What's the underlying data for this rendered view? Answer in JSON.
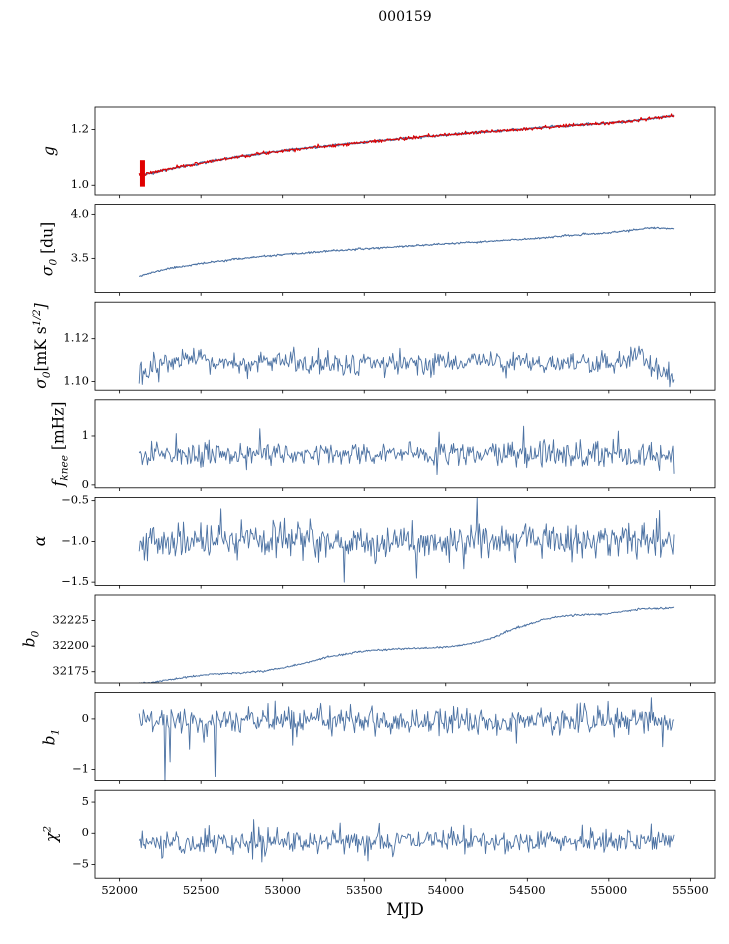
{
  "chart_data": {
    "type": "line",
    "title": "000159",
    "xlabel": "MJD",
    "line_color": "#4c72a3",
    "overlay_color": "#e00000",
    "frame_color": "#000000",
    "x_axis": {
      "range": [
        51849,
        55651
      ],
      "ticks": [
        52000,
        52500,
        53000,
        53500,
        54000,
        54500,
        55000,
        55500
      ],
      "tick_labels": [
        "52000",
        "52500",
        "53000",
        "53500",
        "54000",
        "54500",
        "55000",
        "55500"
      ]
    },
    "x_data_range": [
      52120,
      55400
    ],
    "panels": [
      {
        "id": "g",
        "ylabel": "g",
        "kind": "smooth",
        "seed": 3,
        "noise": 0.0018,
        "lw": 1.6,
        "ylim": [
          0.965,
          1.281
        ],
        "yticks": [
          1.0,
          1.2
        ],
        "ytick_labels": [
          "1.0",
          "1.2"
        ],
        "anchors_x": [
          52120,
          52300,
          52500,
          52700,
          52900,
          53100,
          53300,
          53600,
          53900,
          54200,
          54500,
          54800,
          55100,
          55400
        ],
        "anchors_y": [
          1.035,
          1.058,
          1.08,
          1.1,
          1.117,
          1.131,
          1.143,
          1.16,
          1.176,
          1.19,
          1.203,
          1.216,
          1.228,
          1.25
        ],
        "overlay": {
          "seed": 7,
          "noise": 0.003,
          "lw": 1.1,
          "errorbar": {
            "x": 52140,
            "y0": 0.995,
            "y1": 1.09,
            "width": 5
          }
        }
      },
      {
        "id": "sigma0-du",
        "ylabel": "σ_{0} [du]",
        "kind": "smooth",
        "seed": 11,
        "noise": 0.005,
        "lw": 1.1,
        "ylim": [
          3.111,
          4.111
        ],
        "yticks": [
          3.5,
          4.0
        ],
        "ytick_labels": [
          "3.5",
          "4.0"
        ],
        "anchors_x": [
          52120,
          52300,
          52500,
          52700,
          52900,
          53100,
          53300,
          53600,
          53900,
          54200,
          54500,
          54800,
          55000,
          55250,
          55400
        ],
        "anchors_y": [
          3.3,
          3.385,
          3.44,
          3.49,
          3.525,
          3.555,
          3.585,
          3.62,
          3.655,
          3.685,
          3.72,
          3.765,
          3.79,
          3.845,
          3.84
        ]
      },
      {
        "id": "sigma0-mk",
        "ylabel": "σ_{0}[mK s^{1/2}]",
        "kind": "noisy",
        "seed": 13,
        "noise": 0.0028,
        "lw": 0.9,
        "ylim": [
          1.096,
          1.137
        ],
        "yticks": [
          1.1,
          1.12
        ],
        "ytick_labels": [
          "1.10",
          "1.12"
        ],
        "anchors_x": [
          52120,
          52200,
          52400,
          52700,
          53000,
          53400,
          53800,
          54200,
          54600,
          55000,
          55200,
          55330,
          55400
        ],
        "anchors_y": [
          1.101,
          1.107,
          1.11,
          1.108,
          1.109,
          1.108,
          1.108,
          1.11,
          1.108,
          1.108,
          1.111,
          1.104,
          1.102
        ],
        "spikes": []
      },
      {
        "id": "fknee",
        "ylabel": "f_{knee} [mHz]",
        "kind": "noisy",
        "seed": 17,
        "noise": 0.13,
        "lw": 0.9,
        "ylim": [
          -0.06,
          1.74
        ],
        "yticks": [
          0,
          1
        ],
        "ytick_labels": [
          "0",
          "1"
        ],
        "anchors_x": [
          52120,
          53000,
          54000,
          55000,
          55400
        ],
        "anchors_y": [
          0.61,
          0.63,
          0.62,
          0.63,
          0.61
        ],
        "spikes": [
          {
            "x": 52350,
            "y": 1.05
          },
          {
            "x": 52860,
            "y": 1.15
          },
          {
            "x": 53960,
            "y": 1.08
          },
          {
            "x": 54480,
            "y": 1.2
          },
          {
            "x": 55060,
            "y": 1.1
          }
        ]
      },
      {
        "id": "alpha",
        "ylabel": "α",
        "kind": "noisy",
        "seed": 19,
        "noise": 0.11,
        "lw": 0.9,
        "ylim": [
          -1.54,
          -0.46
        ],
        "yticks": [
          -1.5,
          -1.0,
          -0.5
        ],
        "ytick_labels": [
          "−1.5",
          "−1.0",
          "−0.5"
        ],
        "anchors_x": [
          52120,
          55400
        ],
        "anchors_y": [
          -1.0,
          -1.0
        ],
        "spikes": [
          {
            "x": 52620,
            "y": -0.6
          },
          {
            "x": 53380,
            "y": -1.5
          },
          {
            "x": 53820,
            "y": -1.45
          },
          {
            "x": 54190,
            "y": -0.47
          },
          {
            "x": 55310,
            "y": -0.62
          }
        ]
      },
      {
        "id": "b0",
        "ylabel": "b_{0}",
        "kind": "smooth",
        "seed": 23,
        "noise": 0.45,
        "lw": 1.0,
        "ylim": [
          32164,
          32250
        ],
        "yticks": [
          32175,
          32200,
          32225
        ],
        "ytick_labels": [
          "32175",
          "32200",
          "32225"
        ],
        "anchors_x": [
          52120,
          52200,
          52300,
          52450,
          52600,
          52750,
          52900,
          53000,
          53150,
          53300,
          53450,
          53600,
          53750,
          53900,
          54000,
          54100,
          54200,
          54300,
          54400,
          54500,
          54600,
          54700,
          54800,
          54900,
          55000,
          55100,
          55200,
          55300,
          55400
        ],
        "anchors_y": [
          32163.5,
          32164.5,
          32167,
          32170.5,
          32173,
          32174,
          32176,
          32179,
          32184,
          32190,
          32194,
          32196.5,
          32197.5,
          32198,
          32199,
          32201,
          32204,
          32209,
          32216,
          32221,
          32226,
          32229,
          32230.5,
          32231,
          32232,
          32234,
          32236.5,
          32237,
          32237.5
        ]
      },
      {
        "id": "b1",
        "ylabel": "b_{1}",
        "kind": "noisy",
        "seed": 29,
        "noise": 0.13,
        "lw": 0.9,
        "ylim": [
          -1.22,
          0.52
        ],
        "yticks": [
          -1,
          0
        ],
        "ytick_labels": [
          "−1",
          "0"
        ],
        "anchors_x": [
          52120,
          55400
        ],
        "anchors_y": [
          -0.03,
          -0.03
        ],
        "spikes": [
          {
            "x": 52280,
            "y": -1.27
          },
          {
            "x": 52310,
            "y": -0.85
          },
          {
            "x": 52430,
            "y": -0.6
          },
          {
            "x": 52590,
            "y": -1.14
          },
          {
            "x": 53060,
            "y": -0.52
          },
          {
            "x": 54430,
            "y": -0.48
          },
          {
            "x": 55260,
            "y": 0.42
          },
          {
            "x": 55330,
            "y": -0.55
          }
        ]
      },
      {
        "id": "chi2",
        "ylabel": "χ^{2}",
        "kind": "noisy",
        "seed": 31,
        "noise": 0.95,
        "lw": 0.9,
        "ylim": [
          -7.2,
          6.9
        ],
        "yticks": [
          -5,
          0,
          5
        ],
        "ytick_labels": [
          "−5",
          "0",
          "5"
        ],
        "anchors_x": [
          52120,
          52500,
          53000,
          54000,
          55000,
          55400
        ],
        "anchors_y": [
          -1.6,
          -1.5,
          -1.4,
          -1.2,
          -1.1,
          -1.2
        ],
        "spikes": [
          {
            "x": 52820,
            "y": 2.2
          },
          {
            "x": 52870,
            "y": -4.6
          },
          {
            "x": 53590,
            "y": 1.6
          },
          {
            "x": 54110,
            "y": 1.3
          },
          {
            "x": 54890,
            "y": 0.9
          }
        ]
      }
    ]
  }
}
